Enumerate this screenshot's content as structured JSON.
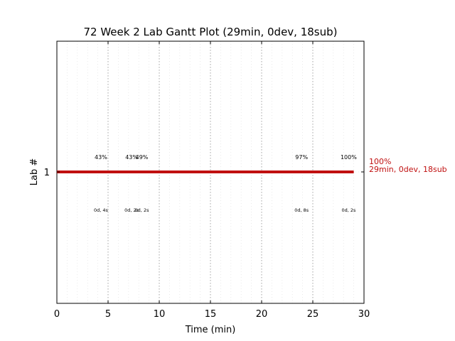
{
  "chart_data": {
    "type": "gantt",
    "title": "72 Week 2 Lab Gantt Plot (29min, 0dev, 18sub)",
    "xlabel": "Time (min)",
    "ylabel": "Lab #",
    "xlim": [
      0,
      30
    ],
    "x_ticks": [
      0,
      5,
      10,
      15,
      20,
      25,
      30
    ],
    "y_ticks": [
      "1"
    ],
    "grid": "vertical dotted",
    "bar_color": "#c01010",
    "bars": [
      {
        "lab": "1",
        "start": 0,
        "end": 29
      }
    ],
    "percent_labels": [
      {
        "x": 4.3,
        "text": "43%"
      },
      {
        "x": 7.3,
        "text": "43%"
      },
      {
        "x": 8.3,
        "text": "49%"
      },
      {
        "x": 23.9,
        "text": "97%"
      },
      {
        "x": 28.5,
        "text": "100%"
      }
    ],
    "detail_labels": [
      {
        "x": 4.3,
        "text": "0d, 4s"
      },
      {
        "x": 7.3,
        "text": "0d, 2s"
      },
      {
        "x": 8.3,
        "text": "0d, 2s"
      },
      {
        "x": 23.9,
        "text": "0d, 8s"
      },
      {
        "x": 28.5,
        "text": "0d, 2s"
      }
    ],
    "end_label": {
      "line1": "100%",
      "line2": "29min, 0dev, 18sub"
    }
  }
}
